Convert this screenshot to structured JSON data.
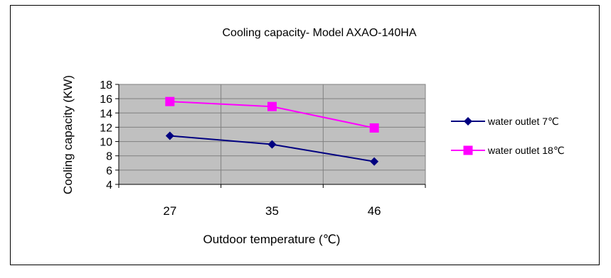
{
  "chart_data": {
    "type": "line",
    "title": "Cooling capacity- Model AXAO-140HA",
    "xlabel": "Outdoor temperature (℃)",
    "ylabel": "Cooling capacity (KW)",
    "categories": [
      "27",
      "35",
      "46"
    ],
    "yticks": [
      "4",
      "6",
      "8",
      "10",
      "12",
      "14",
      "16",
      "18"
    ],
    "ylim": [
      4,
      18
    ],
    "grid": true,
    "plot_background": "#C0C0C0",
    "legend_position": "right",
    "series": [
      {
        "name": "water outlet 7℃",
        "values": [
          10.8,
          9.6,
          7.2
        ],
        "color": "#000080",
        "marker": "diamond"
      },
      {
        "name": "water outlet 18℃",
        "values": [
          15.6,
          14.9,
          11.9
        ],
        "color": "#FF00FF",
        "marker": "square"
      }
    ]
  }
}
